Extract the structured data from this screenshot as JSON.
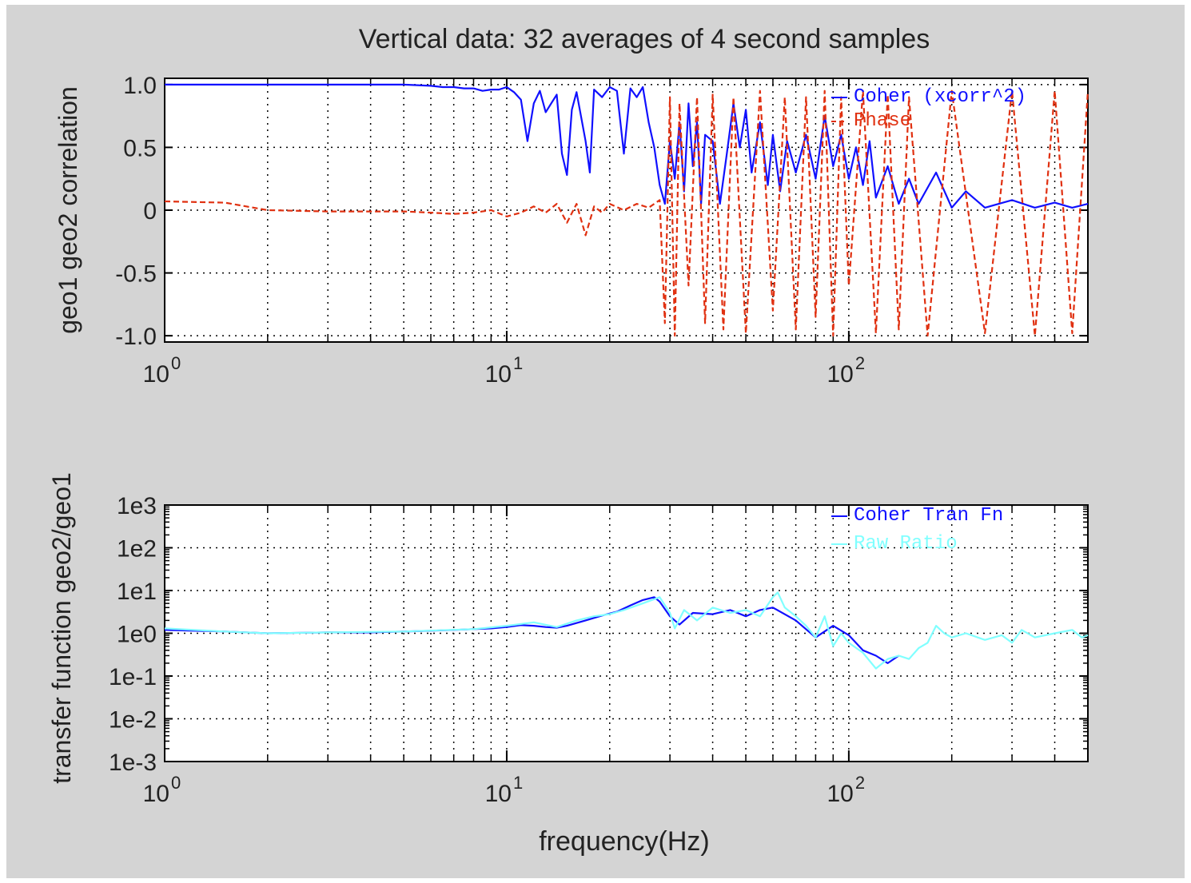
{
  "figure": {
    "title": "Vertical data: 32 averages of 4 second samples",
    "background": "#d4d4d4"
  },
  "chart_data": [
    {
      "type": "line",
      "ylabel": "geo1 geo2 correlation",
      "xscale": "log",
      "xlim": [
        1,
        500
      ],
      "ylim": [
        -1.05,
        1.05
      ],
      "grid": true,
      "legend_placement": "top-right",
      "xticks": [
        {
          "value": 1,
          "base": "10",
          "exp": "0"
        },
        {
          "value": 10,
          "base": "10",
          "exp": "1"
        },
        {
          "value": 100,
          "base": "10",
          "exp": "2"
        }
      ],
      "yticks": [
        {
          "value": 1,
          "label": "1.0"
        },
        {
          "value": 0.5,
          "label": "0.5"
        },
        {
          "value": 0,
          "label": "0"
        },
        {
          "value": -0.5,
          "label": "-0.5"
        },
        {
          "value": -1,
          "label": "-1.0"
        }
      ],
      "series": [
        {
          "name": "Coher (xcorr^2)",
          "color": "#1010ff",
          "dash": "solid",
          "x": [
            1,
            2,
            3,
            5,
            6,
            6.5,
            7,
            7.5,
            8,
            8.5,
            9,
            9.5,
            10,
            10.5,
            11,
            11.5,
            12,
            12.5,
            13,
            14,
            14.5,
            15,
            15.5,
            16,
            17,
            17.5,
            18,
            19,
            20,
            21,
            22,
            23,
            24,
            25,
            26,
            27,
            28,
            29,
            30,
            31,
            32,
            33,
            34,
            35,
            36,
            37,
            38,
            40,
            42,
            44,
            46,
            48,
            50,
            52,
            55,
            58,
            60,
            63,
            66,
            70,
            75,
            80,
            85,
            90,
            95,
            100,
            105,
            110,
            115,
            120,
            130,
            140,
            150,
            160,
            180,
            200,
            220,
            250,
            300,
            350,
            400,
            450,
            500
          ],
          "y": [
            1.0,
            1.0,
            1.0,
            1.0,
            0.99,
            0.98,
            0.98,
            0.97,
            0.97,
            0.95,
            0.96,
            0.96,
            0.98,
            0.94,
            0.88,
            0.55,
            0.85,
            0.95,
            0.78,
            0.92,
            0.45,
            0.28,
            0.8,
            0.94,
            0.55,
            0.3,
            0.96,
            0.9,
            0.98,
            0.95,
            0.45,
            0.97,
            0.9,
            0.98,
            0.7,
            0.5,
            0.2,
            0.05,
            0.55,
            0.25,
            0.7,
            0.15,
            0.85,
            0.35,
            0.7,
            0.05,
            0.6,
            0.55,
            0.05,
            0.45,
            0.85,
            0.5,
            0.8,
            0.3,
            0.7,
            0.2,
            0.6,
            0.15,
            0.55,
            0.3,
            0.6,
            0.25,
            0.75,
            0.35,
            0.6,
            0.25,
            0.5,
            0.2,
            0.55,
            0.1,
            0.35,
            0.05,
            0.25,
            0.05,
            0.3,
            0.02,
            0.15,
            0.02,
            0.08,
            0.02,
            0.06,
            0.02,
            0.05
          ]
        },
        {
          "name": "Phase",
          "color": "#e03010",
          "dash": "dashed",
          "x": [
            1,
            1.5,
            2,
            3,
            4,
            5,
            6,
            7,
            8,
            9,
            10,
            11,
            12,
            13,
            14,
            15,
            16,
            17,
            18,
            19,
            20,
            22,
            24,
            26,
            28,
            29,
            30,
            31,
            32,
            34,
            36,
            38,
            40,
            43,
            46,
            50,
            55,
            60,
            65,
            70,
            75,
            80,
            85,
            90,
            95,
            100,
            110,
            120,
            130,
            140,
            150,
            170,
            200,
            250,
            300,
            350,
            400,
            450,
            500
          ],
          "y": [
            0.07,
            0.06,
            0.0,
            -0.01,
            -0.01,
            -0.01,
            -0.02,
            -0.03,
            -0.02,
            0.0,
            -0.05,
            -0.02,
            0.03,
            -0.02,
            0.05,
            -0.1,
            0.05,
            -0.2,
            0.03,
            -0.02,
            0.05,
            0.0,
            0.05,
            0.02,
            0.08,
            -0.9,
            0.9,
            -1.0,
            0.85,
            -0.6,
            0.9,
            -0.9,
            0.92,
            -0.95,
            0.9,
            -0.98,
            0.95,
            -0.8,
            0.9,
            -0.95,
            0.9,
            -0.85,
            0.95,
            -1.0,
            0.9,
            -0.6,
            0.95,
            -0.98,
            0.92,
            -0.95,
            0.9,
            -1.0,
            0.95,
            -0.98,
            0.95,
            -1.0,
            0.95,
            -0.98,
            0.95
          ]
        }
      ]
    },
    {
      "type": "line",
      "ylabel": "transfer function geo2/geo1",
      "xlabel": "frequency(Hz)",
      "xscale": "log",
      "yscale": "log",
      "xlim": [
        1,
        500
      ],
      "ylim": [
        0.001,
        1000
      ],
      "grid": true,
      "legend_placement": "top-right",
      "xticks": [
        {
          "value": 1,
          "base": "10",
          "exp": "0"
        },
        {
          "value": 10,
          "base": "10",
          "exp": "1"
        },
        {
          "value": 100,
          "base": "10",
          "exp": "2"
        }
      ],
      "yticks": [
        {
          "value": 1000,
          "label": "1e3"
        },
        {
          "value": 100,
          "label": "1e2"
        },
        {
          "value": 10,
          "label": "1e1"
        },
        {
          "value": 1,
          "label": "1e0"
        },
        {
          "value": 0.1,
          "label": "1e-1"
        },
        {
          "value": 0.01,
          "label": "1e-2"
        },
        {
          "value": 0.001,
          "label": "1e-3"
        }
      ],
      "series": [
        {
          "name": "Coher Tran Fn",
          "color": "#1010ff",
          "dash": "solid",
          "x": [
            1,
            1.5,
            2,
            3,
            4,
            5,
            6,
            7,
            8,
            9,
            10,
            11,
            12,
            13,
            14,
            15,
            17,
            19,
            21,
            23,
            25,
            27,
            28,
            30,
            32,
            35,
            40,
            45,
            50,
            55,
            60,
            70,
            80,
            90,
            100,
            110,
            120,
            130,
            140
          ],
          "y": [
            1.2,
            1.1,
            1.0,
            1.05,
            1.05,
            1.1,
            1.15,
            1.2,
            1.25,
            1.3,
            1.4,
            1.55,
            1.5,
            1.4,
            1.35,
            1.5,
            2.0,
            2.6,
            3.2,
            4.5,
            6.0,
            7.0,
            5.5,
            2.5,
            1.6,
            3.0,
            2.8,
            3.5,
            2.5,
            3.5,
            4.0,
            2.0,
            0.8,
            1.5,
            0.9,
            0.4,
            0.3,
            0.2,
            0.3
          ]
        },
        {
          "name": "Raw Ratio",
          "color": "#80ffff",
          "dash": "solid",
          "x": [
            1,
            1.5,
            2,
            3,
            5,
            8,
            10,
            12,
            14,
            16,
            18,
            20,
            22,
            25,
            28,
            30,
            31,
            33,
            36,
            40,
            45,
            50,
            55,
            60,
            62,
            65,
            70,
            75,
            80,
            85,
            90,
            95,
            100,
            110,
            120,
            130,
            140,
            150,
            160,
            170,
            180,
            190,
            200,
            220,
            250,
            280,
            300,
            320,
            350,
            400,
            450,
            480,
            500
          ],
          "y": [
            1.3,
            1.1,
            1.0,
            1.05,
            1.1,
            1.25,
            1.5,
            1.8,
            1.4,
            2.0,
            2.5,
            2.8,
            3.5,
            5.0,
            7.0,
            3.0,
            1.3,
            3.5,
            2.0,
            4.0,
            3.0,
            3.5,
            2.5,
            7.0,
            9.0,
            4.0,
            2.5,
            1.5,
            0.8,
            2.5,
            0.5,
            1.0,
            0.6,
            0.35,
            0.15,
            0.25,
            0.3,
            0.25,
            0.45,
            0.6,
            1.5,
            1.0,
            0.8,
            1.0,
            0.7,
            0.9,
            0.6,
            1.2,
            0.8,
            1.0,
            1.2,
            0.8,
            0.9
          ]
        }
      ]
    }
  ]
}
